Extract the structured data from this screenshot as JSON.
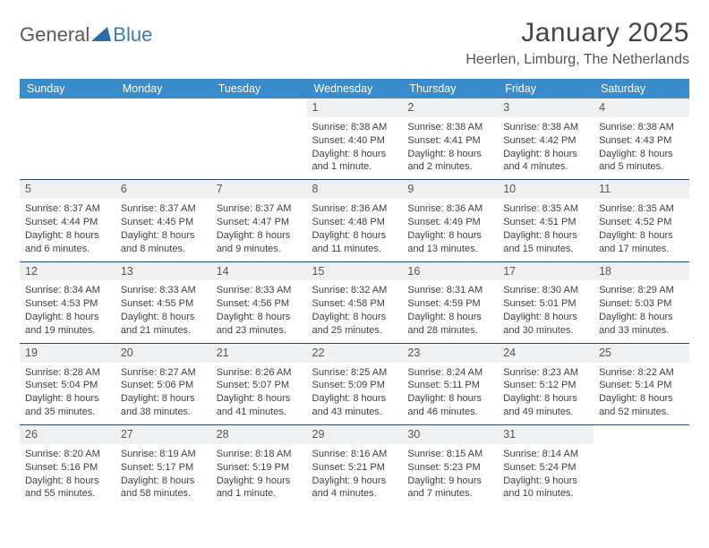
{
  "brand": {
    "general": "General",
    "blue": "Blue"
  },
  "title": "January 2025",
  "location": "Heerlen, Limburg, The Netherlands",
  "colors": {
    "header_bg": "#3a8bc9",
    "header_text": "#ffffff",
    "separator": "#284a6a",
    "daynum_bg": "#eef0f2",
    "text": "#404040",
    "brand_gray": "#5a5a5a",
    "brand_blue": "#3b7ab8"
  },
  "dow": [
    "Sunday",
    "Monday",
    "Tuesday",
    "Wednesday",
    "Thursday",
    "Friday",
    "Saturday"
  ],
  "weeks": [
    [
      null,
      null,
      null,
      {
        "n": "1",
        "sunrise": "8:38 AM",
        "sunset": "4:40 PM",
        "daylight": "8 hours and 1 minute."
      },
      {
        "n": "2",
        "sunrise": "8:38 AM",
        "sunset": "4:41 PM",
        "daylight": "8 hours and 2 minutes."
      },
      {
        "n": "3",
        "sunrise": "8:38 AM",
        "sunset": "4:42 PM",
        "daylight": "8 hours and 4 minutes."
      },
      {
        "n": "4",
        "sunrise": "8:38 AM",
        "sunset": "4:43 PM",
        "daylight": "8 hours and 5 minutes."
      }
    ],
    [
      {
        "n": "5",
        "sunrise": "8:37 AM",
        "sunset": "4:44 PM",
        "daylight": "8 hours and 6 minutes."
      },
      {
        "n": "6",
        "sunrise": "8:37 AM",
        "sunset": "4:45 PM",
        "daylight": "8 hours and 8 minutes."
      },
      {
        "n": "7",
        "sunrise": "8:37 AM",
        "sunset": "4:47 PM",
        "daylight": "8 hours and 9 minutes."
      },
      {
        "n": "8",
        "sunrise": "8:36 AM",
        "sunset": "4:48 PM",
        "daylight": "8 hours and 11 minutes."
      },
      {
        "n": "9",
        "sunrise": "8:36 AM",
        "sunset": "4:49 PM",
        "daylight": "8 hours and 13 minutes."
      },
      {
        "n": "10",
        "sunrise": "8:35 AM",
        "sunset": "4:51 PM",
        "daylight": "8 hours and 15 minutes."
      },
      {
        "n": "11",
        "sunrise": "8:35 AM",
        "sunset": "4:52 PM",
        "daylight": "8 hours and 17 minutes."
      }
    ],
    [
      {
        "n": "12",
        "sunrise": "8:34 AM",
        "sunset": "4:53 PM",
        "daylight": "8 hours and 19 minutes."
      },
      {
        "n": "13",
        "sunrise": "8:33 AM",
        "sunset": "4:55 PM",
        "daylight": "8 hours and 21 minutes."
      },
      {
        "n": "14",
        "sunrise": "8:33 AM",
        "sunset": "4:56 PM",
        "daylight": "8 hours and 23 minutes."
      },
      {
        "n": "15",
        "sunrise": "8:32 AM",
        "sunset": "4:58 PM",
        "daylight": "8 hours and 25 minutes."
      },
      {
        "n": "16",
        "sunrise": "8:31 AM",
        "sunset": "4:59 PM",
        "daylight": "8 hours and 28 minutes."
      },
      {
        "n": "17",
        "sunrise": "8:30 AM",
        "sunset": "5:01 PM",
        "daylight": "8 hours and 30 minutes."
      },
      {
        "n": "18",
        "sunrise": "8:29 AM",
        "sunset": "5:03 PM",
        "daylight": "8 hours and 33 minutes."
      }
    ],
    [
      {
        "n": "19",
        "sunrise": "8:28 AM",
        "sunset": "5:04 PM",
        "daylight": "8 hours and 35 minutes."
      },
      {
        "n": "20",
        "sunrise": "8:27 AM",
        "sunset": "5:06 PM",
        "daylight": "8 hours and 38 minutes."
      },
      {
        "n": "21",
        "sunrise": "8:26 AM",
        "sunset": "5:07 PM",
        "daylight": "8 hours and 41 minutes."
      },
      {
        "n": "22",
        "sunrise": "8:25 AM",
        "sunset": "5:09 PM",
        "daylight": "8 hours and 43 minutes."
      },
      {
        "n": "23",
        "sunrise": "8:24 AM",
        "sunset": "5:11 PM",
        "daylight": "8 hours and 46 minutes."
      },
      {
        "n": "24",
        "sunrise": "8:23 AM",
        "sunset": "5:12 PM",
        "daylight": "8 hours and 49 minutes."
      },
      {
        "n": "25",
        "sunrise": "8:22 AM",
        "sunset": "5:14 PM",
        "daylight": "8 hours and 52 minutes."
      }
    ],
    [
      {
        "n": "26",
        "sunrise": "8:20 AM",
        "sunset": "5:16 PM",
        "daylight": "8 hours and 55 minutes."
      },
      {
        "n": "27",
        "sunrise": "8:19 AM",
        "sunset": "5:17 PM",
        "daylight": "8 hours and 58 minutes."
      },
      {
        "n": "28",
        "sunrise": "8:18 AM",
        "sunset": "5:19 PM",
        "daylight": "9 hours and 1 minute."
      },
      {
        "n": "29",
        "sunrise": "8:16 AM",
        "sunset": "5:21 PM",
        "daylight": "9 hours and 4 minutes."
      },
      {
        "n": "30",
        "sunrise": "8:15 AM",
        "sunset": "5:23 PM",
        "daylight": "9 hours and 7 minutes."
      },
      {
        "n": "31",
        "sunrise": "8:14 AM",
        "sunset": "5:24 PM",
        "daylight": "9 hours and 10 minutes."
      },
      null
    ]
  ],
  "labels": {
    "sunrise": "Sunrise:",
    "sunset": "Sunset:",
    "daylight": "Daylight:"
  }
}
